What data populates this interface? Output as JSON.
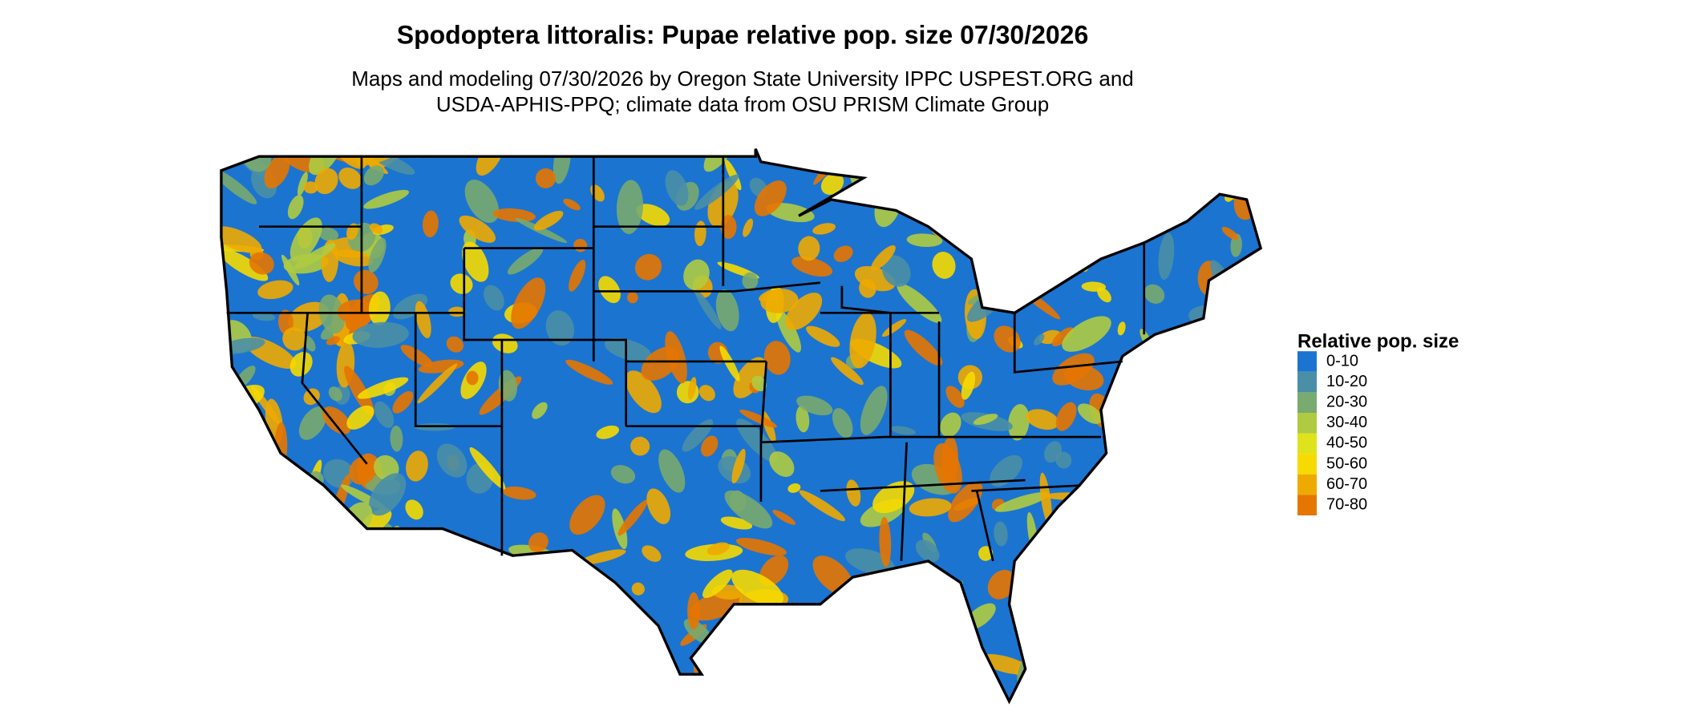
{
  "chart_data": {
    "type": "choropleth-map",
    "title": "Spodoptera littoralis: Pupae relative pop. size 07/30/2026",
    "subtitle": [
      "Maps and modeling 07/30/2026 by Oregon State University IPPC USPEST.ORG and",
      "USDA-APHIS-PPQ; climate data from OSU PRISM Climate Group"
    ],
    "legend_title": "Relative pop. size",
    "categories": [
      "0-10",
      "10-20",
      "20-30",
      "30-40",
      "40-50",
      "50-60",
      "60-70",
      "70-80"
    ],
    "colors": [
      "#1b74d0",
      "#4a8fa6",
      "#79aa6f",
      "#afcb41",
      "#dfe31c",
      "#f6da00",
      "#eeaa00",
      "#e57600"
    ]
  }
}
